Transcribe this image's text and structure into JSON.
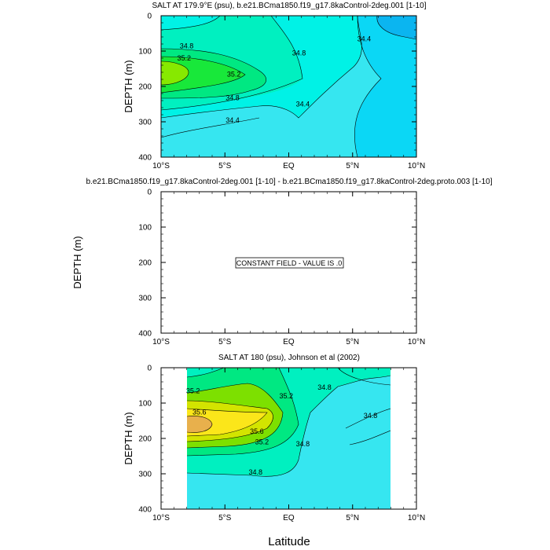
{
  "chart_data": [
    {
      "type": "contour",
      "title": "SALT AT 179.9°E (psu), b.e21.BCma1850.f19_g17.8kaControl-2deg.001 [1-10]",
      "ylabel": "DEPTH (m)",
      "xlabel": "",
      "x_ticks": [
        "10°S",
        "5°S",
        "EQ",
        "5°N",
        "10°N"
      ],
      "y_ticks": [
        "0",
        "100",
        "200",
        "300",
        "400"
      ],
      "xlim": [
        -10,
        10
      ],
      "ylim": [
        400,
        0
      ],
      "contour_labels": [
        {
          "text": "34.8",
          "x": -8,
          "y": 85
        },
        {
          "text": "35.2",
          "x": -8.2,
          "y": 120
        },
        {
          "text": "35.2",
          "x": -4.3,
          "y": 165
        },
        {
          "text": "34.8",
          "x": -4.4,
          "y": 232
        },
        {
          "text": "34.4",
          "x": -4.4,
          "y": 295
        },
        {
          "text": "34.8",
          "x": 0.8,
          "y": 105
        },
        {
          "text": "34.4",
          "x": 1.1,
          "y": 250
        },
        {
          "text": "34.4",
          "x": 5.9,
          "y": 65
        }
      ],
      "colors": {
        "low": "#0bc7f2",
        "mid": "#36e6f0",
        "high": "#00e882",
        "peak": "#87e900"
      }
    },
    {
      "type": "contour",
      "title": "b.e21.BCma1850.f19_g17.8kaControl-2deg.001 [1-10] - b.e21.BCma1850.f19_g17.8kaControl-2deg.proto.003 [1-10]",
      "ylabel": "DEPTH (m)",
      "xlabel": "",
      "x_ticks": [
        "10°S",
        "5°S",
        "EQ",
        "5°N",
        "10°N"
      ],
      "y_ticks": [
        "0",
        "100",
        "200",
        "300",
        "400"
      ],
      "xlim": [
        -10,
        10
      ],
      "ylim": [
        400,
        0
      ],
      "annotation": "CONSTANT FIELD - VALUE IS .0"
    },
    {
      "type": "contour",
      "title": "SALT AT 180 (psu), Johnson et al (2002)",
      "ylabel": "DEPTH (m)",
      "xlabel": "Latitude",
      "x_ticks": [
        "10°S",
        "5°S",
        "EQ",
        "5°N",
        "10°N"
      ],
      "y_ticks": [
        "0",
        "100",
        "200",
        "300",
        "400"
      ],
      "xlim": [
        -10,
        10
      ],
      "ylim": [
        400,
        0
      ],
      "data_extent_x": [
        -8,
        8
      ],
      "contour_labels": [
        {
          "text": "35.2",
          "x": -7.5,
          "y": 65
        },
        {
          "text": "35.6",
          "x": -7.0,
          "y": 125
        },
        {
          "text": "35.6",
          "x": -2.5,
          "y": 180
        },
        {
          "text": "35.2",
          "x": -2.1,
          "y": 210
        },
        {
          "text": "34.8",
          "x": -2.6,
          "y": 295
        },
        {
          "text": "35.2",
          "x": -0.2,
          "y": 80
        },
        {
          "text": "34.8",
          "x": 1.1,
          "y": 215
        },
        {
          "text": "34.8",
          "x": 2.8,
          "y": 55
        },
        {
          "text": "34.8",
          "x": 6.4,
          "y": 135
        }
      ],
      "colors": {
        "base": "#36e6f0",
        "c1": "#00e882",
        "c2": "#7de000",
        "c3": "#d3e400",
        "c4": "#fbe61a",
        "peak": "#e8b04c"
      }
    }
  ]
}
